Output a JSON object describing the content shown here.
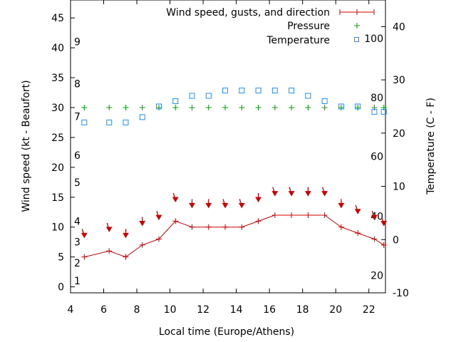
{
  "chart_data": {
    "type": "line",
    "xlabel": "Local time (Europe/Athens)",
    "ylabel_left": "Wind speed (kt - Beaufort)",
    "ylabel_right": "Temperature (C - F)",
    "xlim": [
      4,
      23
    ],
    "ylim_left": [
      -1,
      48
    ],
    "ylim_right": [
      -10,
      45
    ],
    "x_ticks": [
      4,
      6,
      8,
      10,
      12,
      14,
      16,
      18,
      20,
      22
    ],
    "y_left_ticks": [
      0,
      5,
      10,
      15,
      20,
      25,
      30,
      35,
      40,
      45
    ],
    "y_right_ticks": [
      -10,
      0,
      10,
      20,
      30,
      40
    ],
    "beaufort_scale": [
      {
        "label": "1",
        "y": 1
      },
      {
        "label": "2",
        "y": 4
      },
      {
        "label": "3",
        "y": 7.5
      },
      {
        "label": "4",
        "y": 11
      },
      {
        "label": "5",
        "y": 17.5
      },
      {
        "label": "6",
        "y": 22
      },
      {
        "label": "7",
        "y": 28.5
      },
      {
        "label": "8",
        "y": 34
      },
      {
        "label": "9",
        "y": 41
      }
    ],
    "fahrenheit_scale": [
      {
        "label": "20",
        "c": -6.7
      },
      {
        "label": "40",
        "c": 4.4
      },
      {
        "label": "60",
        "c": 15.6
      },
      {
        "label": "80",
        "c": 26.7
      },
      {
        "label": "100",
        "c": 37.8
      }
    ],
    "legend": {
      "wind": "Wind speed, gusts, and direction",
      "pressure": "Pressure",
      "temperature": "Temperature"
    },
    "wind_speed": {
      "x": [
        4.83,
        6.33,
        7.33,
        8.33,
        9.33,
        10.33,
        11.33,
        12.33,
        13.33,
        14.33,
        15.33,
        16.33,
        17.33,
        18.33,
        19.33,
        20.33,
        21.33,
        22.33,
        22.9
      ],
      "y": [
        5,
        6,
        5,
        7,
        8,
        11,
        10,
        10,
        10,
        10,
        11,
        12,
        12,
        12,
        12,
        10,
        9,
        8,
        7
      ]
    },
    "wind_direction_arrows": {
      "x": [
        4.83,
        6.33,
        7.33,
        8.33,
        9.33,
        10.33,
        11.33,
        12.33,
        13.33,
        14.33,
        15.33,
        16.33,
        17.33,
        18.33,
        19.33,
        20.33,
        21.33,
        22.33,
        22.9
      ],
      "y": [
        8.5,
        9.5,
        8.5,
        10.5,
        11.5,
        14.5,
        13.5,
        13.5,
        13.5,
        13.5,
        14.5,
        15.5,
        15.5,
        15.5,
        15.5,
        13.5,
        12.5,
        11.5,
        10.5
      ],
      "lean": [
        1,
        1,
        0,
        0,
        1,
        1,
        0,
        0,
        1,
        1,
        0,
        1,
        1,
        0,
        1,
        0,
        1,
        1,
        1
      ]
    },
    "pressure": {
      "x": [
        4.83,
        6.33,
        7.33,
        8.33,
        9.33,
        10.33,
        11.33,
        12.33,
        13.33,
        14.33,
        15.33,
        16.33,
        17.33,
        18.33,
        19.33,
        20.33,
        21.33,
        22.33,
        22.9
      ],
      "y": [
        30,
        30,
        30,
        30,
        30,
        30,
        30,
        30,
        30,
        30,
        30,
        30,
        30,
        30,
        30,
        30,
        30,
        30,
        30
      ]
    },
    "temperature": {
      "x": [
        4.83,
        6.33,
        7.33,
        8.33,
        9.33,
        10.33,
        11.33,
        12.33,
        13.33,
        14.33,
        15.33,
        16.33,
        17.33,
        18.33,
        19.33,
        20.33,
        21.33,
        22.33,
        22.9
      ],
      "y": [
        22,
        22,
        22,
        23,
        25,
        26,
        27,
        27,
        28,
        28,
        28,
        28,
        28,
        27,
        26,
        25,
        25,
        24,
        24
      ]
    },
    "colors": {
      "wind": "#cc0000",
      "pressure": "#00a000",
      "temperature": "#1e90ff",
      "axis": "#000000"
    }
  }
}
